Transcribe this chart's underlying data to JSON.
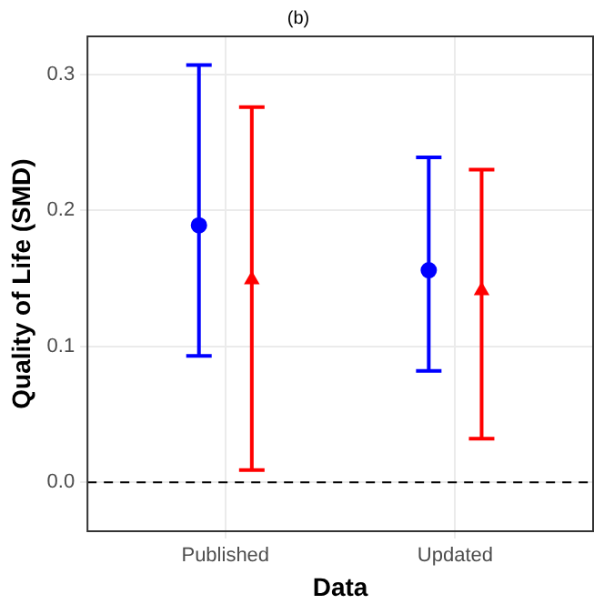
{
  "chart_data": {
    "type": "scatter",
    "title": "(b)",
    "xlabel": "Data",
    "ylabel": "Quality of Life (SMD)",
    "categories": [
      "Published",
      "Updated"
    ],
    "series": [
      {
        "color": "#0000ff",
        "marker": "circle",
        "values": [
          0.189,
          0.156
        ],
        "errors": [
          [
            0.093,
            0.307
          ],
          [
            0.082,
            0.239
          ]
        ]
      },
      {
        "color": "#ff0000",
        "marker": "triangle",
        "values": [
          0.149,
          0.141
        ],
        "errors": [
          [
            0.009,
            0.276
          ],
          [
            0.032,
            0.23
          ]
        ]
      }
    ],
    "ylim": [
      -0.036,
      0.328
    ],
    "yticks": [
      {
        "value": 0,
        "label": "0.0"
      },
      0.1,
      0.2,
      0.3
    ],
    "ref_lines": [
      {
        "axis": "y",
        "value": 0,
        "color": "#000000",
        "line_style": "dashed"
      }
    ],
    "grid": true
  }
}
